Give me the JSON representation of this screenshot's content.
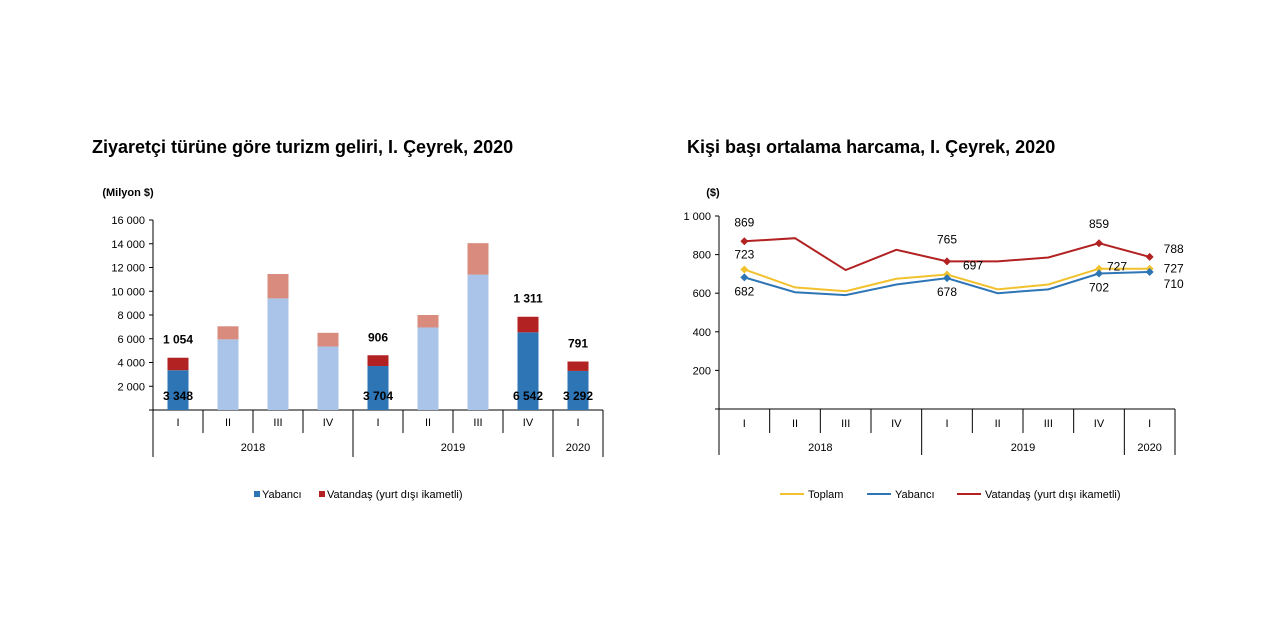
{
  "chart_data": [
    {
      "type": "bar",
      "stacked": true,
      "title": "Ziyaretçi türüne göre turizm geliri, I. Çeyrek, 2020",
      "ylabel": "(Milyon $)",
      "ylim": [
        0,
        16000
      ],
      "yticks": [
        "2 000",
        "4 000",
        "6 000",
        "8 000",
        "10 000",
        "12 000",
        "14 000",
        "16 000"
      ],
      "ytick_values": [
        2000,
        4000,
        6000,
        8000,
        10000,
        12000,
        14000,
        16000
      ],
      "categories": [
        "I",
        "II",
        "III",
        "IV",
        "I",
        "II",
        "III",
        "IV",
        "I"
      ],
      "years": [
        {
          "label": "2018",
          "from": 0,
          "to": 3
        },
        {
          "label": "2019",
          "from": 4,
          "to": 7
        },
        {
          "label": "2020",
          "from": 8,
          "to": 8
        }
      ],
      "highlighted": [
        true,
        false,
        false,
        false,
        true,
        false,
        false,
        true,
        true
      ],
      "series": [
        {
          "name": "Yabancı",
          "color": "#2e75b6",
          "light_color": "#a9c4e8",
          "values": [
            3348,
            5950,
            9400,
            5350,
            3704,
            6950,
            11400,
            6542,
            3292
          ],
          "labels": [
            "3 348",
            "",
            "",
            "",
            "3 704",
            "",
            "",
            "6 542",
            "3 292"
          ]
        },
        {
          "name": "Vatandaş (yurt dışı ikametli)",
          "color": "#b22222",
          "light_color": "#d98b7e",
          "values": [
            1054,
            1100,
            2050,
            1150,
            906,
            1050,
            2650,
            1311,
            791
          ],
          "labels": [
            "1 054",
            "",
            "",
            "",
            "906",
            "",
            "",
            "1 311",
            "791"
          ]
        }
      ],
      "legend_position": "bottom"
    },
    {
      "type": "line",
      "title": "Kişi başı ortalama harcama, I. Çeyrek, 2020",
      "ylabel": "($)",
      "ylim": [
        0,
        1000
      ],
      "yticks": [
        "200",
        "400",
        "600",
        "800",
        "1 000"
      ],
      "ytick_values": [
        200,
        400,
        600,
        800,
        1000
      ],
      "categories": [
        "I",
        "II",
        "III",
        "IV",
        "I",
        "II",
        "III",
        "IV",
        "I"
      ],
      "years": [
        {
          "label": "2018",
          "from": 0,
          "to": 3
        },
        {
          "label": "2019",
          "from": 4,
          "to": 7
        },
        {
          "label": "2020",
          "from": 8,
          "to": 8
        }
      ],
      "series": [
        {
          "name": "Toplam",
          "color": "#f2c12e",
          "values": [
            723,
            630,
            610,
            675,
            697,
            620,
            645,
            727,
            727
          ],
          "labels": [
            "723",
            "",
            "",
            "",
            "697",
            "",
            "",
            "727",
            "727"
          ]
        },
        {
          "name": "Yabancı",
          "color": "#2e75b6",
          "values": [
            682,
            605,
            590,
            645,
            678,
            600,
            620,
            702,
            710
          ],
          "labels": [
            "682",
            "",
            "",
            "",
            "678",
            "",
            "",
            "702",
            "710"
          ]
        },
        {
          "name": "Vatandaş (yurt dışı ikametli)",
          "color": "#b22222",
          "values": [
            869,
            885,
            720,
            825,
            765,
            765,
            785,
            859,
            788
          ],
          "labels": [
            "869",
            "",
            "",
            "",
            "765",
            "",
            "",
            "859",
            "788"
          ]
        }
      ],
      "marked_points": [
        0,
        4,
        7,
        8
      ],
      "legend_position": "bottom"
    }
  ]
}
